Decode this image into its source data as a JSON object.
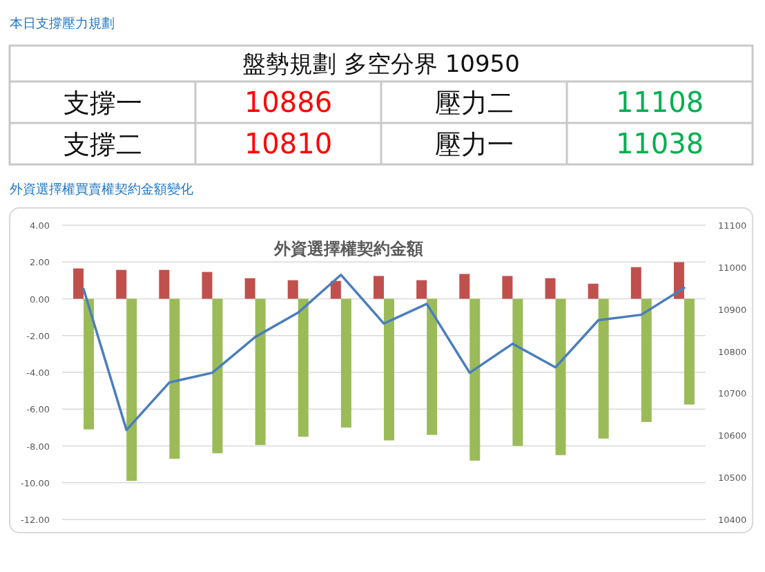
{
  "chart_data": [
    {
      "type": "other",
      "title": "本日支撐壓力規劃",
      "subtitle": "盤勢規劃 多空分界 10950",
      "categories": [
        "支撐一",
        "壓力二",
        "支撐二",
        "壓力一"
      ],
      "values": [
        10886,
        11108,
        10810,
        11038
      ],
      "colors": [
        "#ff0000",
        "#00b050",
        "#ff0000",
        "#00b050"
      ],
      "data_labels": true
    },
    {
      "type": "bar",
      "title": "外資選擇權買賣權契約金額變化",
      "subtitle": "外資選擇權契約金額",
      "categories": [
        null,
        null,
        null,
        null,
        null,
        null,
        null,
        null,
        null,
        null,
        null,
        null,
        null,
        null,
        null
      ],
      "series": [
        {
          "color": "#c0504d",
          "values": [
            1.65,
            1.57,
            1.57,
            1.46,
            1.12,
            1.01,
            0.97,
            1.24,
            1.01,
            1.35,
            1.24,
            1.12,
            0.82,
            1.72,
            1.99
          ]
        },
        {
          "color": "#9bbb59",
          "values": [
            -7.1,
            -9.9,
            -8.7,
            -8.4,
            -7.95,
            -7.5,
            -7.0,
            -7.7,
            -7.4,
            -8.8,
            -8.0,
            -8.5,
            -7.6,
            -6.7,
            -5.75
          ]
        },
        {
          "type": "line",
          "axis": "y2",
          "color": "#4a7ebb",
          "values": [
            10948,
            10613,
            10726,
            10749,
            10834,
            10892,
            10982,
            10866,
            10913,
            10749,
            10818,
            10762,
            10874,
            10887,
            10951
          ]
        }
      ],
      "ylim": [
        -12,
        4
      ],
      "yticks": [
        {
          "value": -12,
          "label": "-12.00"
        },
        {
          "value": -10,
          "label": "-10.00"
        },
        {
          "value": -8,
          "label": "-8.00"
        },
        {
          "value": -6,
          "label": "-6.00"
        },
        {
          "value": -4,
          "label": "-4.00"
        },
        {
          "value": -2,
          "label": "-2.00"
        },
        {
          "value": 0,
          "label": "0.00"
        },
        {
          "value": 2,
          "label": "2.00"
        },
        {
          "value": 4,
          "label": "4.00"
        }
      ],
      "y2lim": [
        10400,
        11100
      ],
      "y2ticks": [
        10400,
        10500,
        10600,
        10700,
        10800,
        10900,
        11000,
        11100
      ],
      "grid": "y",
      "marker": "none",
      "line_style": "solid"
    }
  ]
}
